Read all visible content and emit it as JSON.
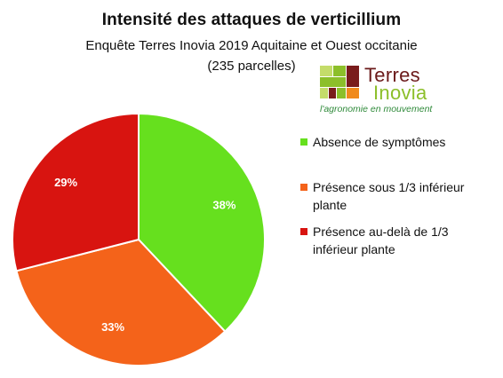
{
  "chart_data": {
    "type": "pie",
    "title": "Intensité des attaques de verticillium",
    "subtitle_lines": [
      "Enquête Terres Inovia 2019  Aquitaine et Ouest occitanie",
      "(235 parcelles)"
    ],
    "slices": [
      {
        "name": "Absence de symptômes",
        "value": 38,
        "label": "38%",
        "color": "#66e01e"
      },
      {
        "name": "Présence sous 1/3 inférieur plante",
        "value": 33,
        "label": "33%",
        "color": "#f4631a"
      },
      {
        "name": "Présence au-delà de  1/3 inférieur plante",
        "value": 29,
        "label": "29%",
        "color": "#d81410"
      }
    ],
    "legend": {
      "placement": "right",
      "items": [
        {
          "lines": [
            "Absence de symptômes"
          ],
          "color": "#66e01e"
        },
        {
          "lines": [
            "Présence sous 1/3 inférieur",
            "plante"
          ],
          "color": "#f4631a"
        },
        {
          "lines": [
            "Présence au-delà de  1/3",
            "inférieur plante"
          ],
          "color": "#d81410"
        }
      ]
    },
    "start_angle": "12 o'clock",
    "direction": "clockwise"
  },
  "logo": {
    "word1": "Terres",
    "word2": "Inovia",
    "tagline": "l'agronomie en mouvement",
    "colors": {
      "dark_red": "#7a1c1c",
      "green": "#8cbf2a",
      "orange": "#f08a1c",
      "light_green": "#c4dc6a",
      "tagline": "#2f8a3a"
    },
    "icon": "terres-inovia-logo-icon"
  }
}
